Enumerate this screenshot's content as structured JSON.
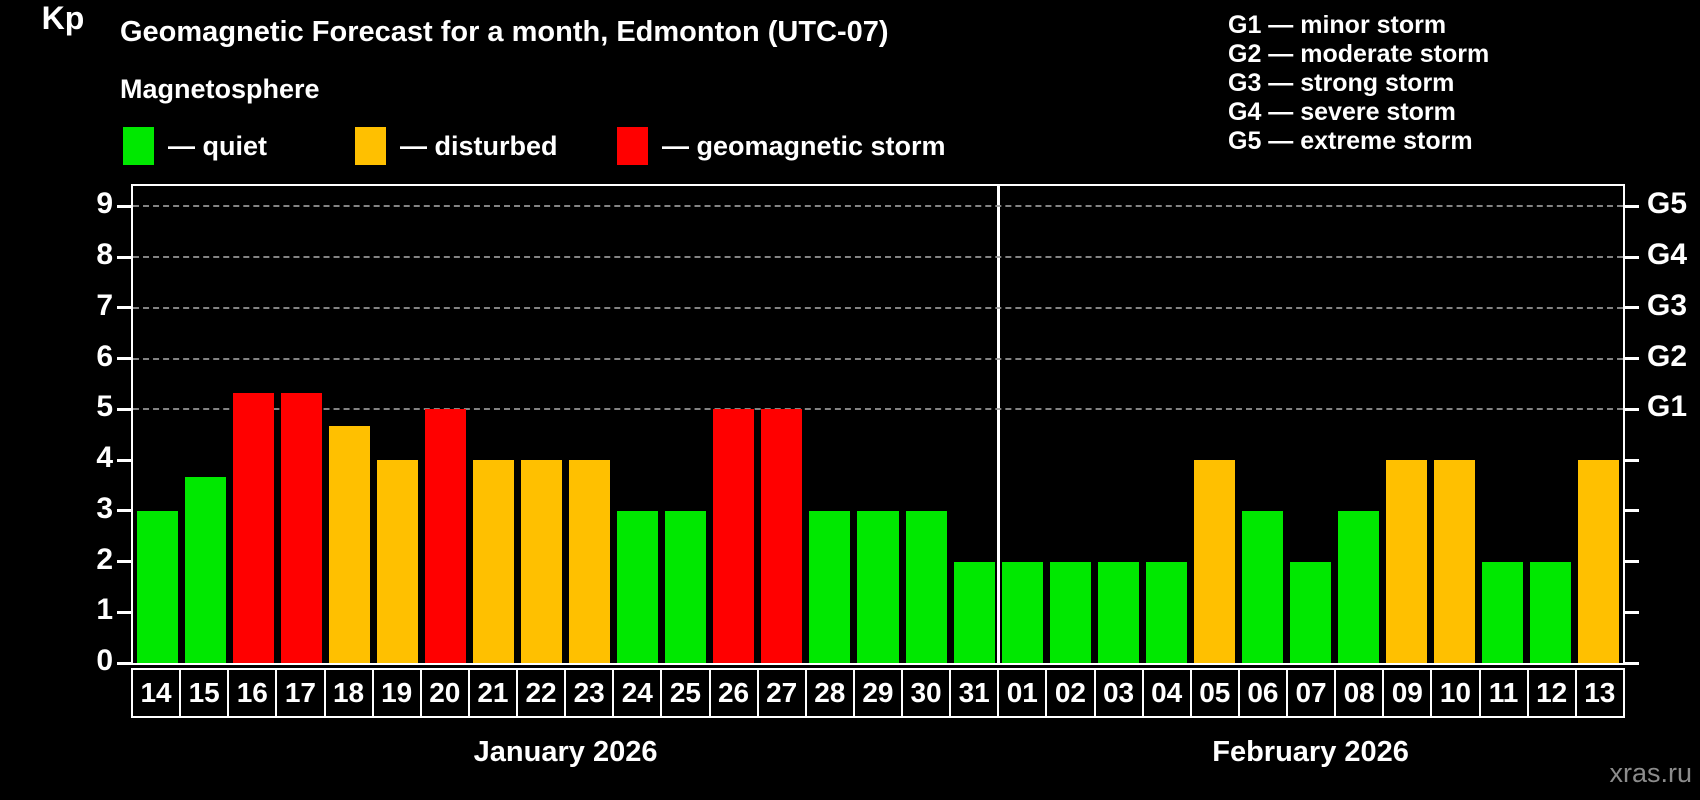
{
  "title": "Geomagnetic Forecast for a month, Edmonton (UTC-07)",
  "subtitle": "Magnetosphere",
  "legend": [
    {
      "key": "quiet",
      "label": "— quiet"
    },
    {
      "key": "disturbed",
      "label": "— disturbed"
    },
    {
      "key": "storm",
      "label": "— geomagnetic storm"
    }
  ],
  "g_legend": [
    "G1 — minor storm",
    "G2 — moderate storm",
    "G3 — strong storm",
    "G4 — severe storm",
    "G5 — extreme storm"
  ],
  "colors": {
    "background": "#000000",
    "text": "#ffffff",
    "quiet": "#00e800",
    "disturbed": "#ffc000",
    "storm": "#ff0000",
    "grid": "#9a9a9a",
    "watermark": "#8c8c8c"
  },
  "y_axis": {
    "label": "Kp",
    "min": 0,
    "max": 9,
    "step": 1
  },
  "right_axis": {
    "labels": [
      "G1",
      "G2",
      "G3",
      "G4",
      "G5"
    ],
    "values": [
      5,
      6,
      7,
      8,
      9
    ]
  },
  "watermark": "xras.ru",
  "chart_data": {
    "type": "bar",
    "title": "Geomagnetic Forecast for a month, Edmonton (UTC-07)",
    "ylabel": "Kp",
    "ylim": [
      0,
      9.4
    ],
    "grid_levels": [
      5,
      6,
      7,
      8,
      9
    ],
    "legend_position": "top-left",
    "months": [
      {
        "label": "January 2026",
        "days": [
          "14",
          "15",
          "16",
          "17",
          "18",
          "19",
          "20",
          "21",
          "22",
          "23",
          "24",
          "25",
          "26",
          "27",
          "28",
          "29",
          "30",
          "31"
        ],
        "values": [
          3,
          3.67,
          5.33,
          5.33,
          4.67,
          4,
          5,
          4,
          4,
          4,
          3,
          3,
          5,
          5,
          3,
          3,
          3,
          2
        ],
        "statuses": [
          "quiet",
          "quiet",
          "storm",
          "storm",
          "disturbed",
          "disturbed",
          "storm",
          "disturbed",
          "disturbed",
          "disturbed",
          "quiet",
          "quiet",
          "storm",
          "storm",
          "quiet",
          "quiet",
          "quiet",
          "quiet"
        ]
      },
      {
        "label": "February 2026",
        "days": [
          "01",
          "02",
          "03",
          "04",
          "05",
          "06",
          "07",
          "08",
          "09",
          "10",
          "11",
          "12",
          "13"
        ],
        "values": [
          2,
          2,
          2,
          2,
          4,
          3,
          2,
          3,
          4,
          4,
          2,
          2,
          4
        ],
        "statuses": [
          "quiet",
          "quiet",
          "quiet",
          "quiet",
          "disturbed",
          "quiet",
          "quiet",
          "quiet",
          "disturbed",
          "disturbed",
          "quiet",
          "quiet",
          "disturbed"
        ]
      }
    ]
  }
}
